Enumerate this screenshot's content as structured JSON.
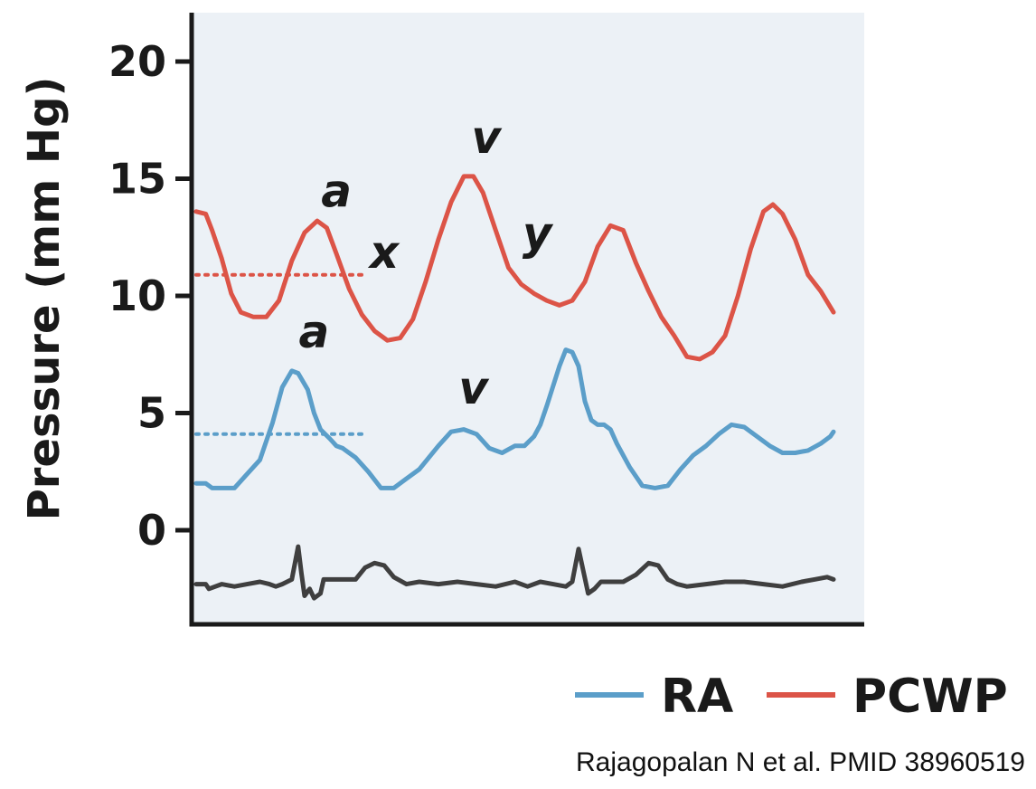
{
  "chart_data": {
    "type": "line",
    "title": "",
    "xlabel": "",
    "ylabel": "Pressure (mm Hg)",
    "ylim": [
      -3.2,
      22.2
    ],
    "yticks": [
      0,
      5,
      10,
      15,
      20
    ],
    "ytick_labels": [
      "0",
      "5",
      "10",
      "15",
      "20"
    ],
    "x_unit": "normalized time (0-100)",
    "xlim": [
      0,
      100
    ],
    "series": [
      {
        "name": "RA",
        "color": "#5b9ec9",
        "x": [
          0,
          1.5,
          2.5,
          6,
          8,
          10,
          12,
          13.5,
          15,
          16,
          17.5,
          18.5,
          19.5,
          21,
          22,
          23,
          25,
          27,
          29,
          31,
          33,
          35,
          38,
          40,
          42,
          44,
          46,
          48,
          50,
          51.5,
          53,
          54,
          55,
          57,
          58,
          59,
          60,
          61,
          62,
          63,
          64,
          65,
          66,
          68,
          70,
          72,
          74,
          76,
          78,
          80,
          82,
          84,
          86,
          88,
          90,
          92,
          94,
          96,
          98,
          99.5,
          100
        ],
        "values": [
          2.0,
          2.0,
          1.8,
          1.8,
          2.4,
          3.0,
          4.6,
          6.1,
          6.8,
          6.7,
          6.0,
          5.0,
          4.3,
          3.9,
          3.6,
          3.5,
          3.1,
          2.5,
          1.8,
          1.8,
          2.2,
          2.6,
          3.6,
          4.2,
          4.3,
          4.1,
          3.5,
          3.3,
          3.6,
          3.6,
          4.0,
          4.5,
          5.3,
          7.0,
          7.7,
          7.6,
          7.0,
          5.5,
          4.7,
          4.5,
          4.5,
          4.3,
          3.7,
          2.7,
          1.9,
          1.8,
          1.9,
          2.6,
          3.2,
          3.6,
          4.1,
          4.5,
          4.4,
          4.0,
          3.6,
          3.3,
          3.3,
          3.4,
          3.7,
          4.0,
          4.2
        ]
      },
      {
        "name": "PCWP",
        "color": "#dc5447",
        "x": [
          0,
          1.5,
          2.5,
          4,
          5.5,
          7,
          9,
          11,
          13,
          15,
          17,
          19,
          20.5,
          22,
          24,
          26,
          28,
          30,
          32,
          34,
          36,
          38,
          40,
          42,
          43.5,
          45,
          47,
          49,
          51,
          53,
          55,
          57,
          59,
          61,
          63,
          65,
          67,
          69,
          71,
          73,
          75,
          77,
          79,
          81,
          83,
          85,
          87,
          89,
          90.5,
          92,
          94,
          96,
          98,
          100
        ],
        "values": [
          13.6,
          13.5,
          12.8,
          11.6,
          10.1,
          9.3,
          9.1,
          9.1,
          9.8,
          11.5,
          12.7,
          13.2,
          12.9,
          11.8,
          10.3,
          9.2,
          8.5,
          8.1,
          8.2,
          9.0,
          10.6,
          12.4,
          14.0,
          15.1,
          15.1,
          14.4,
          12.8,
          11.2,
          10.5,
          10.1,
          9.8,
          9.6,
          9.8,
          10.6,
          12.1,
          13.0,
          12.8,
          11.4,
          10.2,
          9.1,
          8.3,
          7.4,
          7.3,
          7.6,
          8.3,
          10.0,
          12.0,
          13.6,
          13.9,
          13.5,
          12.4,
          10.9,
          10.2,
          9.3
        ]
      },
      {
        "name": "ECG",
        "color": "#3f3f3f",
        "x": [
          0,
          1.5,
          2,
          4,
          6,
          8,
          10,
          11.5,
          12.5,
          13.5,
          15,
          16,
          16.5,
          17,
          17.8,
          18.5,
          19.5,
          20,
          21,
          23,
          25,
          26.5,
          28,
          29.5,
          31,
          33,
          35,
          38,
          41,
          44,
          47,
          50,
          52,
          54,
          56,
          58,
          59,
          60,
          60.8,
          61.5,
          62.5,
          63.5,
          65,
          67,
          69,
          71,
          72.5,
          74,
          75.5,
          77,
          80,
          83,
          86,
          89,
          92,
          95,
          97,
          99,
          100
        ],
        "values": [
          -2.3,
          -2.3,
          -2.5,
          -2.3,
          -2.4,
          -2.3,
          -2.2,
          -2.3,
          -2.4,
          -2.3,
          -2.1,
          -0.7,
          -1.8,
          -2.8,
          -2.5,
          -2.9,
          -2.7,
          -2.1,
          -2.1,
          -2.1,
          -2.1,
          -1.6,
          -1.4,
          -1.5,
          -2.0,
          -2.3,
          -2.2,
          -2.3,
          -2.2,
          -2.3,
          -2.4,
          -2.2,
          -2.4,
          -2.2,
          -2.3,
          -2.4,
          -2.2,
          -0.8,
          -1.8,
          -2.7,
          -2.5,
          -2.2,
          -2.2,
          -2.2,
          -1.9,
          -1.4,
          -1.5,
          -2.1,
          -2.3,
          -2.4,
          -2.3,
          -2.2,
          -2.2,
          -2.3,
          -2.4,
          -2.2,
          -2.1,
          -2.0,
          -2.1
        ]
      }
    ],
    "reference_lines": [
      {
        "series": "PCWP",
        "value": 10.9,
        "x_from": 0,
        "x_to": 26,
        "style": "dotted"
      },
      {
        "series": "RA",
        "value": 4.1,
        "x_from": 0,
        "x_to": 26,
        "style": "dotted"
      }
    ],
    "annotations": [
      {
        "text": "a",
        "series": "PCWP",
        "x": 22,
        "y": 13.8
      },
      {
        "text": "x",
        "series": "PCWP",
        "x": 29.5,
        "y": 11.2
      },
      {
        "text": "v",
        "series": "PCWP",
        "x": 45.5,
        "y": 16.1
      },
      {
        "text": "y",
        "series": "PCWP",
        "x": 53.5,
        "y": 12.0
      },
      {
        "text": "a",
        "series": "RA",
        "x": 18.5,
        "y": 7.8
      },
      {
        "text": "v",
        "series": "RA",
        "x": 43.5,
        "y": 5.4
      }
    ],
    "grid": false,
    "legend": {
      "placement": "bottom-right",
      "entries": [
        {
          "label": "RA",
          "color": "#5b9ec9"
        },
        {
          "label": "PCWP",
          "color": "#dc5447"
        }
      ]
    },
    "plot_background": "#ecf1f6"
  },
  "citation": "Rajagopalan N et al. PMID 38960519"
}
